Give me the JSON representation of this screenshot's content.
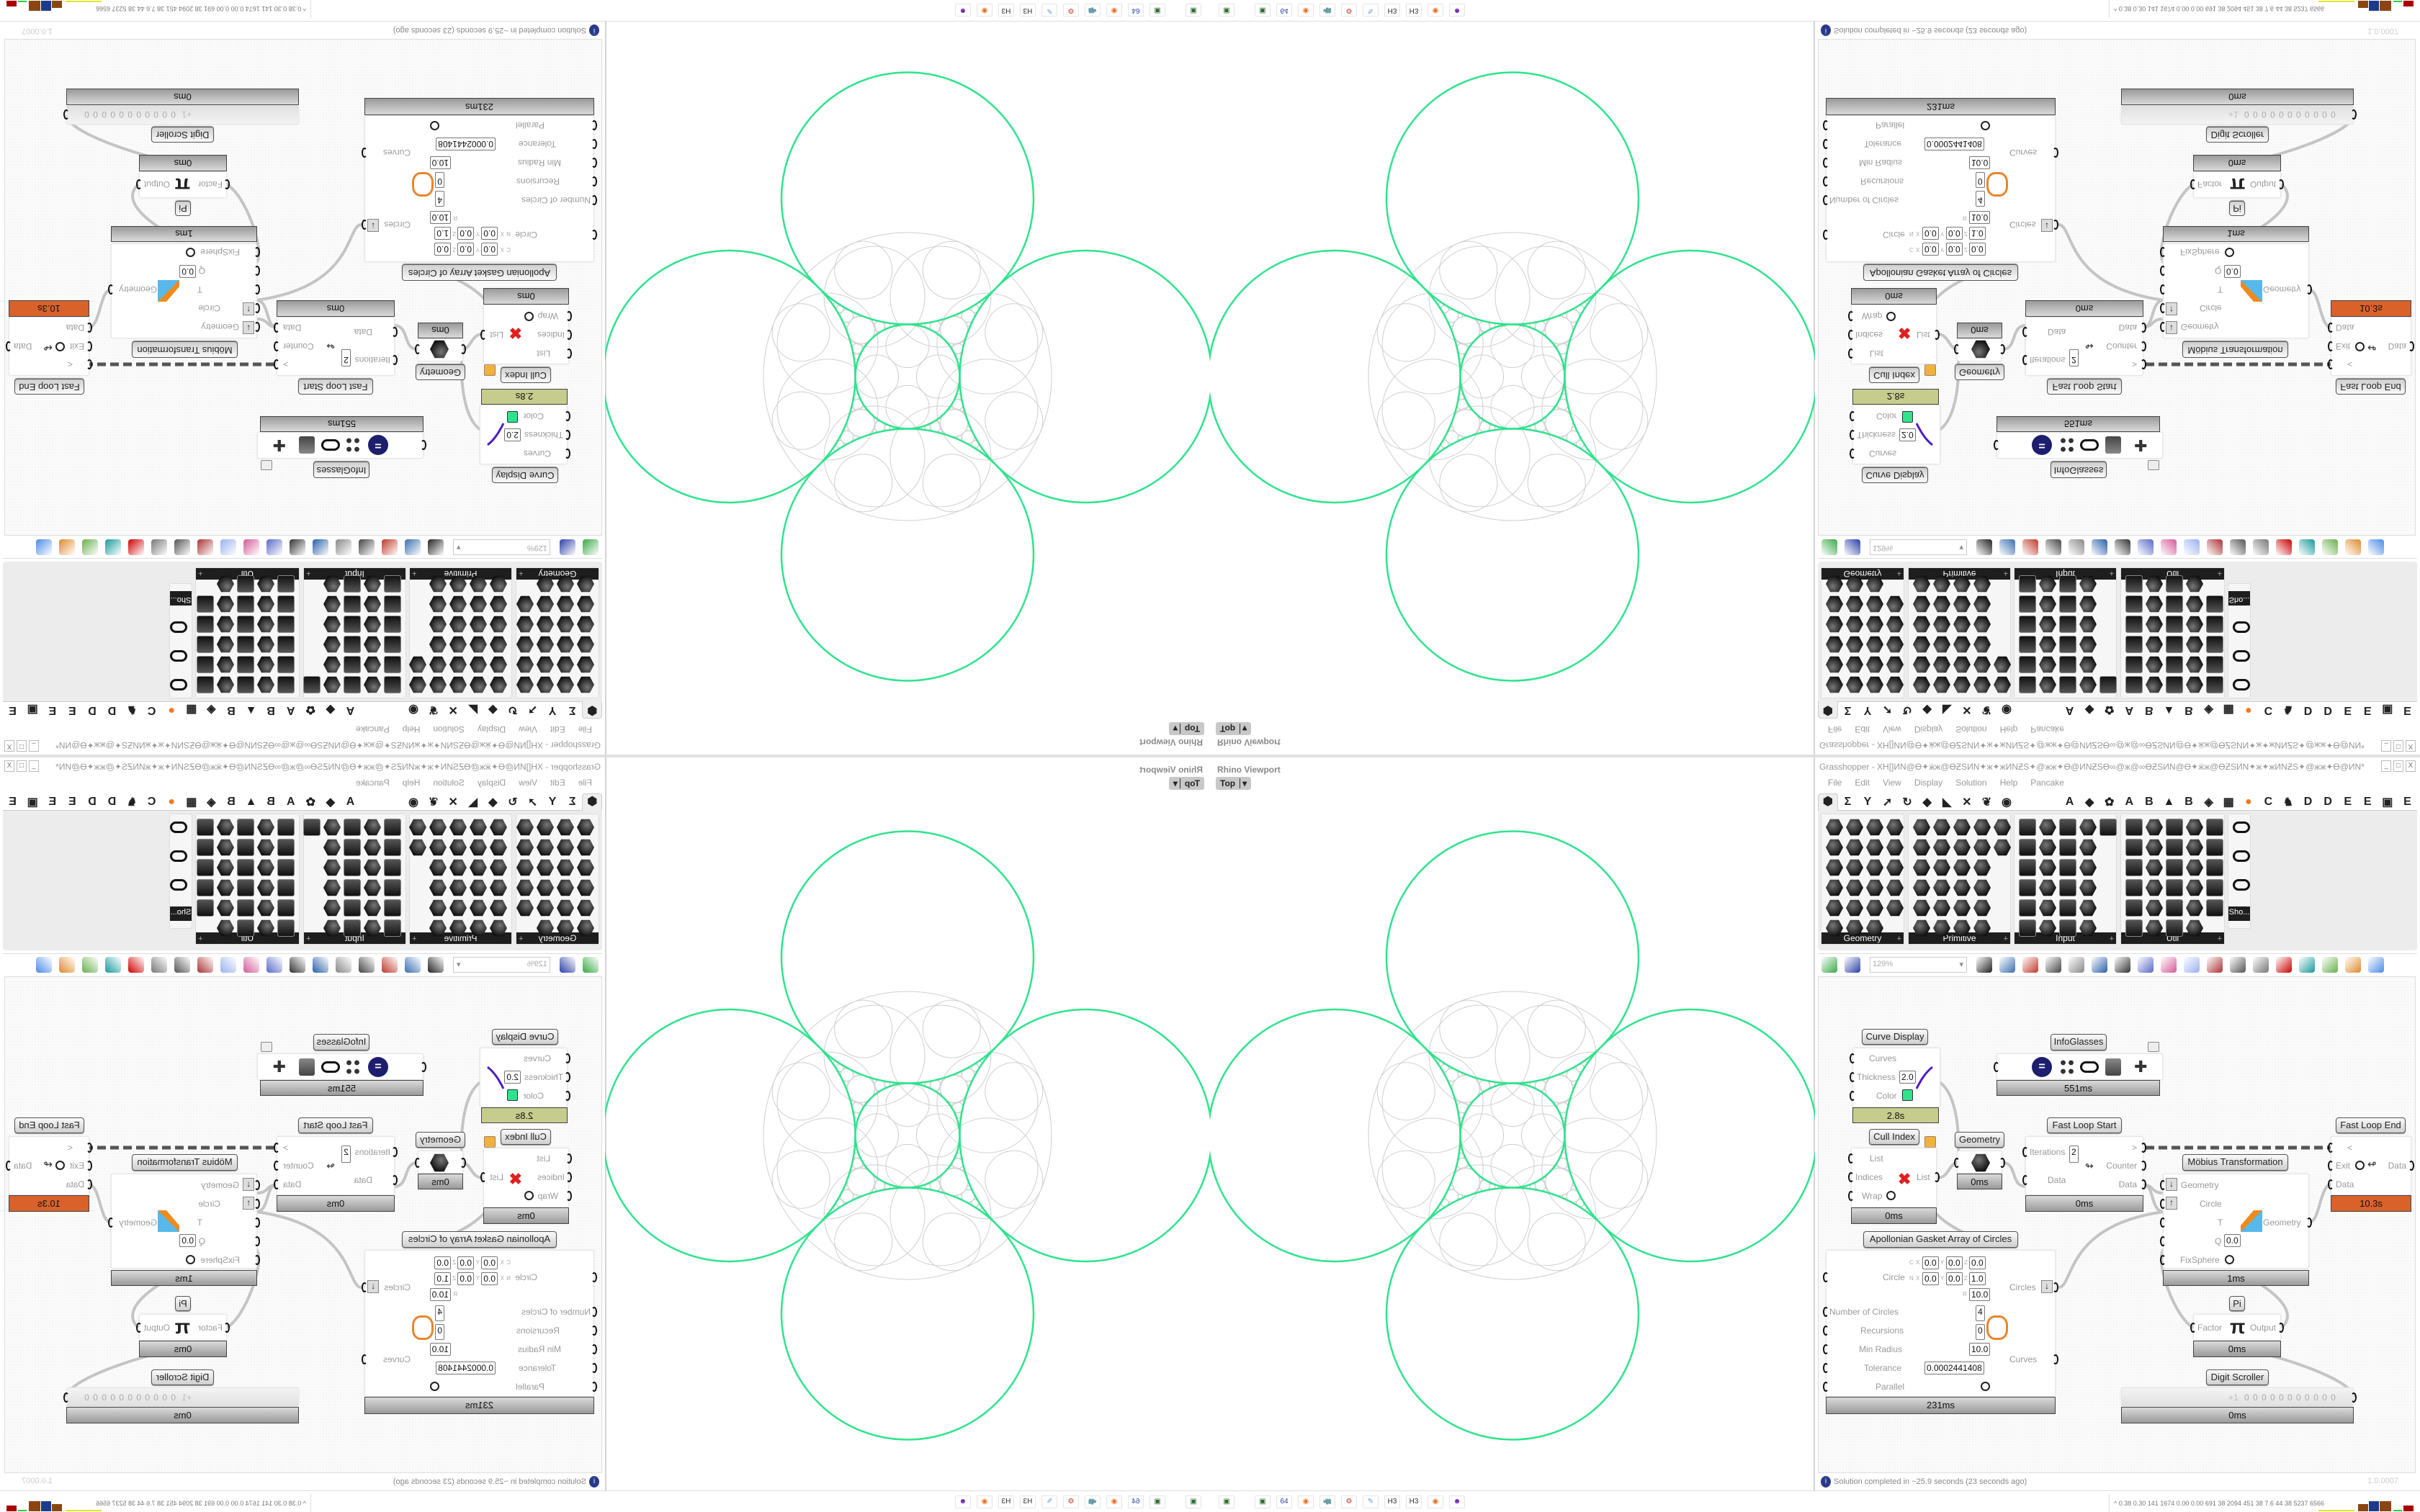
{
  "viewport": {
    "title": "Rhino Viewport",
    "view": "Top"
  },
  "colors": {
    "curve": "#2fe38d",
    "gasket": "#cfcfcf",
    "loop_end_bar": "#d9622b",
    "curve_display_bar": "#c6cc8c",
    "swatch": "#2fe38d"
  },
  "grasshopper": {
    "title": "Grasshopper - XH[]ИN@Ө✦ӝж@ӨƵSИN✦ж✦жИNƵS✦@жж✦Ө@ИNƵSӨ∞@ж@∞ӨƵSИN@Ө✦ӝж@ӨƵSИN✦ж✦жИNƵS✦@жж✦Ө@ИN*",
    "window_buttons": [
      "_",
      "□",
      "X"
    ],
    "menu": [
      "File",
      "Edit",
      "View",
      "Display",
      "Solution",
      "Help",
      "Pancake"
    ],
    "tabs": [
      "⬢",
      "Σ",
      "Y",
      "➚",
      "↻",
      "◆",
      "◣",
      "✕",
      "❦",
      "◉",
      "A",
      "◆",
      "✿",
      "A",
      "B",
      "▲",
      "B",
      "◈",
      "▦",
      "●",
      "C",
      "♞",
      "D",
      "D",
      "E",
      "E",
      "▣",
      "E"
    ],
    "panels": [
      "Geometry",
      "Primitive",
      "Input",
      "Util",
      "Sho..."
    ],
    "zoom": "129%",
    "nodes": {
      "curve_display": {
        "label": "Curve Display",
        "curves": "Curves",
        "thickness": "Thickness",
        "thickness_value": "2.0",
        "color": "Color",
        "time": "2.8s"
      },
      "infoglasses": {
        "label": "InfoGlasses",
        "time": "551ms"
      },
      "cull_index": {
        "label": "Cull Index",
        "list": "List",
        "indices": "Indices",
        "wrap": "Wrap",
        "out_list": "List",
        "time": "0ms"
      },
      "geometry": {
        "label": "Geometry",
        "time": "0ms"
      },
      "fast_loop_start": {
        "label": "Fast Loop Start",
        "iterations": "Iterations",
        "iterations_value": "2",
        "data": "Data",
        "out_next": ">",
        "counter": "Counter",
        "out_data": "Data",
        "time": "0ms"
      },
      "fast_loop_end": {
        "label": "Fast Loop End",
        "in_prev": "<",
        "exit": "Exit",
        "data": "Data",
        "out_data": "Data",
        "time": "10.3s"
      },
      "mobius": {
        "label": "Möbius Transformation",
        "geometry": "Geometry",
        "circle": "Circle",
        "t": "T",
        "q": "Q",
        "q_value": "0.0",
        "fixsphere": "FixSphere",
        "out_geometry": "Geometry",
        "time": "1ms"
      },
      "apollonian": {
        "label": "Apollonian Gasket Array of Circles",
        "circle": "Circle",
        "c": "C",
        "n": "N",
        "x": "X",
        "y": "Y",
        "z": "Z",
        "r": "R",
        "cx": "0.0",
        "cy": "0.0",
        "cz": "0.0",
        "nx": "0.0",
        "ny": "0.0",
        "nz": "1.0",
        "radius": "10.0",
        "number_of_circles": "Number of Circles",
        "number_value": "4",
        "recursions": "Recursions",
        "recursions_value": "0",
        "min_radius": "Min Radius",
        "min_radius_value": "10.0",
        "tolerance": "Tolerance",
        "tolerance_value": "0.0002441408",
        "parallel": "Parallel",
        "out_circles": "Circles",
        "out_curves": "Curves",
        "time": "231ms"
      },
      "pi": {
        "label": "Pi",
        "factor": "Factor",
        "symbol": "π",
        "output": "Output",
        "time": "0ms"
      },
      "digit_scroller": {
        "label": "Digit Scroller",
        "step": "+1",
        "digits": "0 0 0 0 0 0 0 0 0 0 0",
        "time": "0ms"
      }
    },
    "status": "Solution completed in ~25.9 seconds (23 seconds ago)",
    "version": "1.0.0007"
  },
  "taskbar": {
    "apps": [
      "device-icon",
      "device-icon",
      "floppy-64-icon",
      "firefox-icon",
      "rhino-icon",
      "red-gear-icon",
      "notepad-icon",
      "h3-icon",
      "h3-icon",
      "firefox-icon",
      "purple-app-icon"
    ],
    "app_labels": [
      "▣",
      "▣",
      "64",
      "◉",
      "🦏",
      "⚙",
      "✎",
      "H3",
      "H3",
      "◉",
      "☻"
    ],
    "stats": "0.38 0.30 141 1674 0.00 0.00 691 38 2094 451 38 7.6 44 38 5237 6566"
  }
}
